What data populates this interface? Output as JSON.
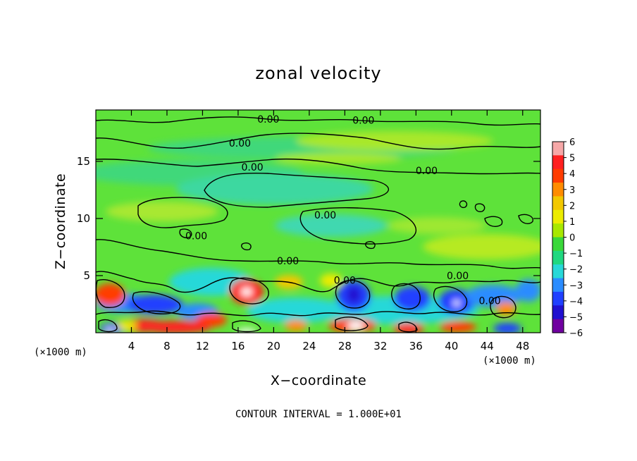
{
  "chart_data": {
    "type": "heatmap",
    "title": "zonal velocity",
    "xlabel": "X−coordinate",
    "ylabel": "Z−coordinate",
    "x_unit_left": "(×1000 m)",
    "x_unit_right": "(×1000 m)",
    "footer": "CONTOUR INTERVAL = 1.000E+01",
    "xlim": [
      0,
      50
    ],
    "ylim": [
      0,
      19.5
    ],
    "x_ticks": [
      4,
      8,
      12,
      16,
      20,
      24,
      28,
      32,
      36,
      40,
      44,
      48
    ],
    "x_tick_labels": [
      "4",
      "8",
      "12",
      "16",
      "20",
      "24",
      "28",
      "32",
      "36",
      "40",
      "44",
      "48"
    ],
    "y_ticks": [
      5,
      10,
      15
    ],
    "y_tick_labels": [
      "5",
      "10",
      "15"
    ],
    "colorbar": {
      "min": -6,
      "max": 6,
      "ticks": [
        6,
        5,
        4,
        3,
        2,
        1,
        0,
        -1,
        -2,
        -3,
        -4,
        -5,
        -6
      ],
      "tick_labels": [
        "6",
        "5",
        "4",
        "3",
        "2",
        "1",
        "0",
        "−1",
        "−2",
        "−3",
        "−4",
        "−5",
        "−6"
      ],
      "colors": [
        "#f6a8a8",
        "#ff2020",
        "#ff3c00",
        "#ff8c00",
        "#f2c800",
        "#ecec00",
        "#a8e800",
        "#3ad83a",
        "#20d880",
        "#28d8d8",
        "#2a8cff",
        "#2040ff",
        "#2010d0",
        "#7000a0"
      ]
    },
    "contour_labels": [
      {
        "text": "0.00",
        "x": 19.4,
        "z": 18.7
      },
      {
        "text": "0.00",
        "x": 30.1,
        "z": 18.6
      },
      {
        "text": "0.00",
        "x": 16.2,
        "z": 16.6
      },
      {
        "text": "0.00",
        "x": 17.6,
        "z": 14.5
      },
      {
        "text": "0.00",
        "x": 37.2,
        "z": 14.2
      },
      {
        "text": "0.00",
        "x": 25.8,
        "z": 10.3
      },
      {
        "text": "0.00",
        "x": 11.3,
        "z": 8.5
      },
      {
        "text": "0.00",
        "x": 21.6,
        "z": 6.3
      },
      {
        "text": "0.00",
        "x": 28.0,
        "z": 4.6
      },
      {
        "text": "0.00",
        "x": 40.7,
        "z": 5.0
      },
      {
        "text": "0.00",
        "x": 44.3,
        "z": 2.8
      }
    ]
  }
}
